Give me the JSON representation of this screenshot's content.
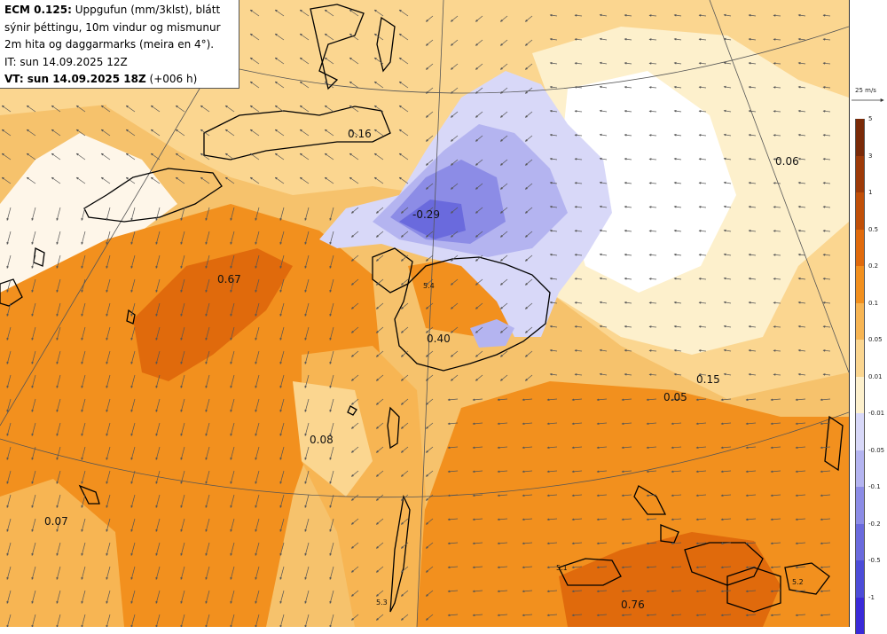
{
  "header": {
    "model": "ECM 0.125:",
    "line1_rest": " Uppgufun (mm/3klst), blátt",
    "line2": "sýnir þéttingu, 10m vindur og mismunur",
    "line3": "2m hita og daggarmarks (meira en 4°).",
    "it_line": "IT: sun 14.09.2025 12Z",
    "vt_bold": "VT: sun 14.09.2025 18Z",
    "vt_rest": " (+006 h)"
  },
  "wind_reference": "25 m/s",
  "legend_positive": {
    "labels": [
      "5",
      "3",
      "1",
      "0.5",
      "0.2",
      "0.1",
      "0.05",
      "0.01"
    ],
    "colors": [
      "#7a2a08",
      "#9d3a08",
      "#c04f08",
      "#e06a0c",
      "#f2901e",
      "#f7b553",
      "#fbd690",
      "#fdf0cc"
    ]
  },
  "legend_negative": {
    "labels": [
      "-0.01",
      "-0.05",
      "-0.1",
      "-0.2",
      "-0.5",
      "-1"
    ],
    "colors": [
      "#d8d8f8",
      "#b4b4f0",
      "#8c8ce6",
      "#6a6add",
      "#4c4cd8",
      "#3a2ad8"
    ]
  },
  "map_labels": [
    {
      "text": "0.16"
    },
    {
      "text": "0.06"
    },
    {
      "text": "-0.29"
    },
    {
      "text": "0.67"
    },
    {
      "text": "0.40"
    },
    {
      "text": "0.15"
    },
    {
      "text": "0.05"
    },
    {
      "text": "0.08"
    },
    {
      "text": "0.07"
    },
    {
      "text": "0.76"
    },
    {
      "text": "5.4"
    },
    {
      "text": "5.1"
    },
    {
      "text": "5.3"
    },
    {
      "text": "5.2"
    }
  ]
}
